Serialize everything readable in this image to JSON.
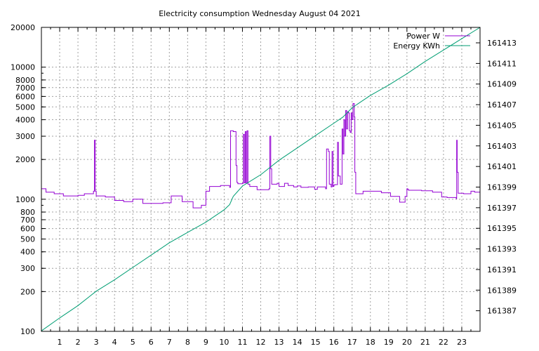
{
  "chart_data": {
    "type": "line",
    "title": "Electricity consumption Wednesday August 04 2021",
    "xlabel": "",
    "ylabel": "",
    "y2label": "",
    "grid": true,
    "legend_placement": "top-right",
    "x_range": [
      0,
      24
    ],
    "x_ticks": [
      1,
      2,
      3,
      4,
      5,
      6,
      7,
      8,
      9,
      10,
      11,
      12,
      13,
      14,
      15,
      16,
      17,
      18,
      19,
      20,
      21,
      22,
      23
    ],
    "y_scale": "log",
    "y_range": [
      100,
      20000
    ],
    "y_ticks": [
      100,
      200,
      300,
      400,
      500,
      600,
      700,
      800,
      1000,
      2000,
      3000,
      4000,
      5000,
      6000,
      7000,
      8000,
      10000,
      20000
    ],
    "y2_range": [
      161385,
      161414.5
    ],
    "y2_ticks": [
      161387,
      161389,
      161391,
      161393,
      161395,
      161397,
      161399,
      161401,
      161403,
      161405,
      161407,
      161409,
      161411,
      161413
    ],
    "series": [
      {
        "name": "Power W",
        "axis": "y1",
        "color": "#9400d3",
        "step": true,
        "x": [
          0,
          0.25,
          0.7,
          1.2,
          2.0,
          2.35,
          2.85,
          2.9,
          2.95,
          3.0,
          3.5,
          4.0,
          4.5,
          5.0,
          5.55,
          6.25,
          6.65,
          7.1,
          7.7,
          8.3,
          8.75,
          9.0,
          9.2,
          9.8,
          10.3,
          10.35,
          10.5,
          10.65,
          10.7,
          10.75,
          11.0,
          11.05,
          11.1,
          11.15,
          11.2,
          11.25,
          11.3,
          11.4,
          11.55,
          11.8,
          12.45,
          12.5,
          12.55,
          12.6,
          12.9,
          13.0,
          13.3,
          13.5,
          13.8,
          14.0,
          14.2,
          14.6,
          14.95,
          15.1,
          15.55,
          15.6,
          15.7,
          15.75,
          15.85,
          15.9,
          15.95,
          16.0,
          16.05,
          16.2,
          16.25,
          16.35,
          16.45,
          16.5,
          16.55,
          16.6,
          16.65,
          16.7,
          16.75,
          16.8,
          16.85,
          16.9,
          16.95,
          17.0,
          17.05,
          17.12,
          17.15,
          17.2,
          17.6,
          18.6,
          19.1,
          19.6,
          19.9,
          20.0,
          20.05,
          20.1,
          20.8,
          21.4,
          21.9,
          22.2,
          22.7,
          22.72,
          22.75,
          22.8,
          23.1,
          23.5,
          23.7,
          24.0
        ],
        "values": [
          1200,
          1130,
          1100,
          1060,
          1070,
          1100,
          1150,
          2800,
          1150,
          1060,
          1040,
          980,
          960,
          1000,
          930,
          930,
          940,
          1060,
          960,
          860,
          900,
          1150,
          1250,
          1270,
          1230,
          3300,
          3250,
          1800,
          1340,
          1310,
          1320,
          3100,
          1330,
          3250,
          1320,
          3300,
          1300,
          1250,
          1250,
          1180,
          1200,
          3000,
          1700,
          1300,
          1320,
          1250,
          1320,
          1270,
          1240,
          1260,
          1230,
          1240,
          1190,
          1240,
          1200,
          2400,
          2300,
          1300,
          1240,
          2300,
          1250,
          1280,
          1290,
          2700,
          1500,
          1300,
          3400,
          2200,
          4000,
          3000,
          4700,
          3400,
          4600,
          4500,
          3300,
          3200,
          4500,
          4000,
          5300,
          4200,
          1600,
          1100,
          1150,
          1120,
          1050,
          950,
          1050,
          1200,
          1180,
          1170,
          1160,
          1130,
          1040,
          1030,
          1010,
          2800,
          1600,
          1110,
          1100,
          1150,
          1130,
          1200
        ]
      },
      {
        "name": "Energy KWh",
        "axis": "y2",
        "color": "#009e73",
        "step": false,
        "x": [
          0,
          1,
          2,
          3,
          4,
          5,
          6,
          7,
          8,
          9,
          10,
          10.3,
          10.5,
          11,
          12,
          12.5,
          13,
          14,
          15,
          16,
          16.5,
          17,
          17.5,
          18,
          19,
          20,
          21,
          22,
          23,
          24
        ],
        "values": [
          161385.05,
          161386.3,
          161387.5,
          161388.9,
          161390.0,
          161391.2,
          161392.4,
          161393.6,
          161394.6,
          161395.6,
          161396.8,
          161397.3,
          161398.1,
          161399.1,
          161400.2,
          161400.9,
          161401.6,
          161402.8,
          161404.0,
          161405.2,
          161405.8,
          161406.7,
          161407.3,
          161407.9,
          161408.9,
          161410.0,
          161411.2,
          161412.3,
          161413.4,
          161414.5
        ]
      }
    ]
  }
}
